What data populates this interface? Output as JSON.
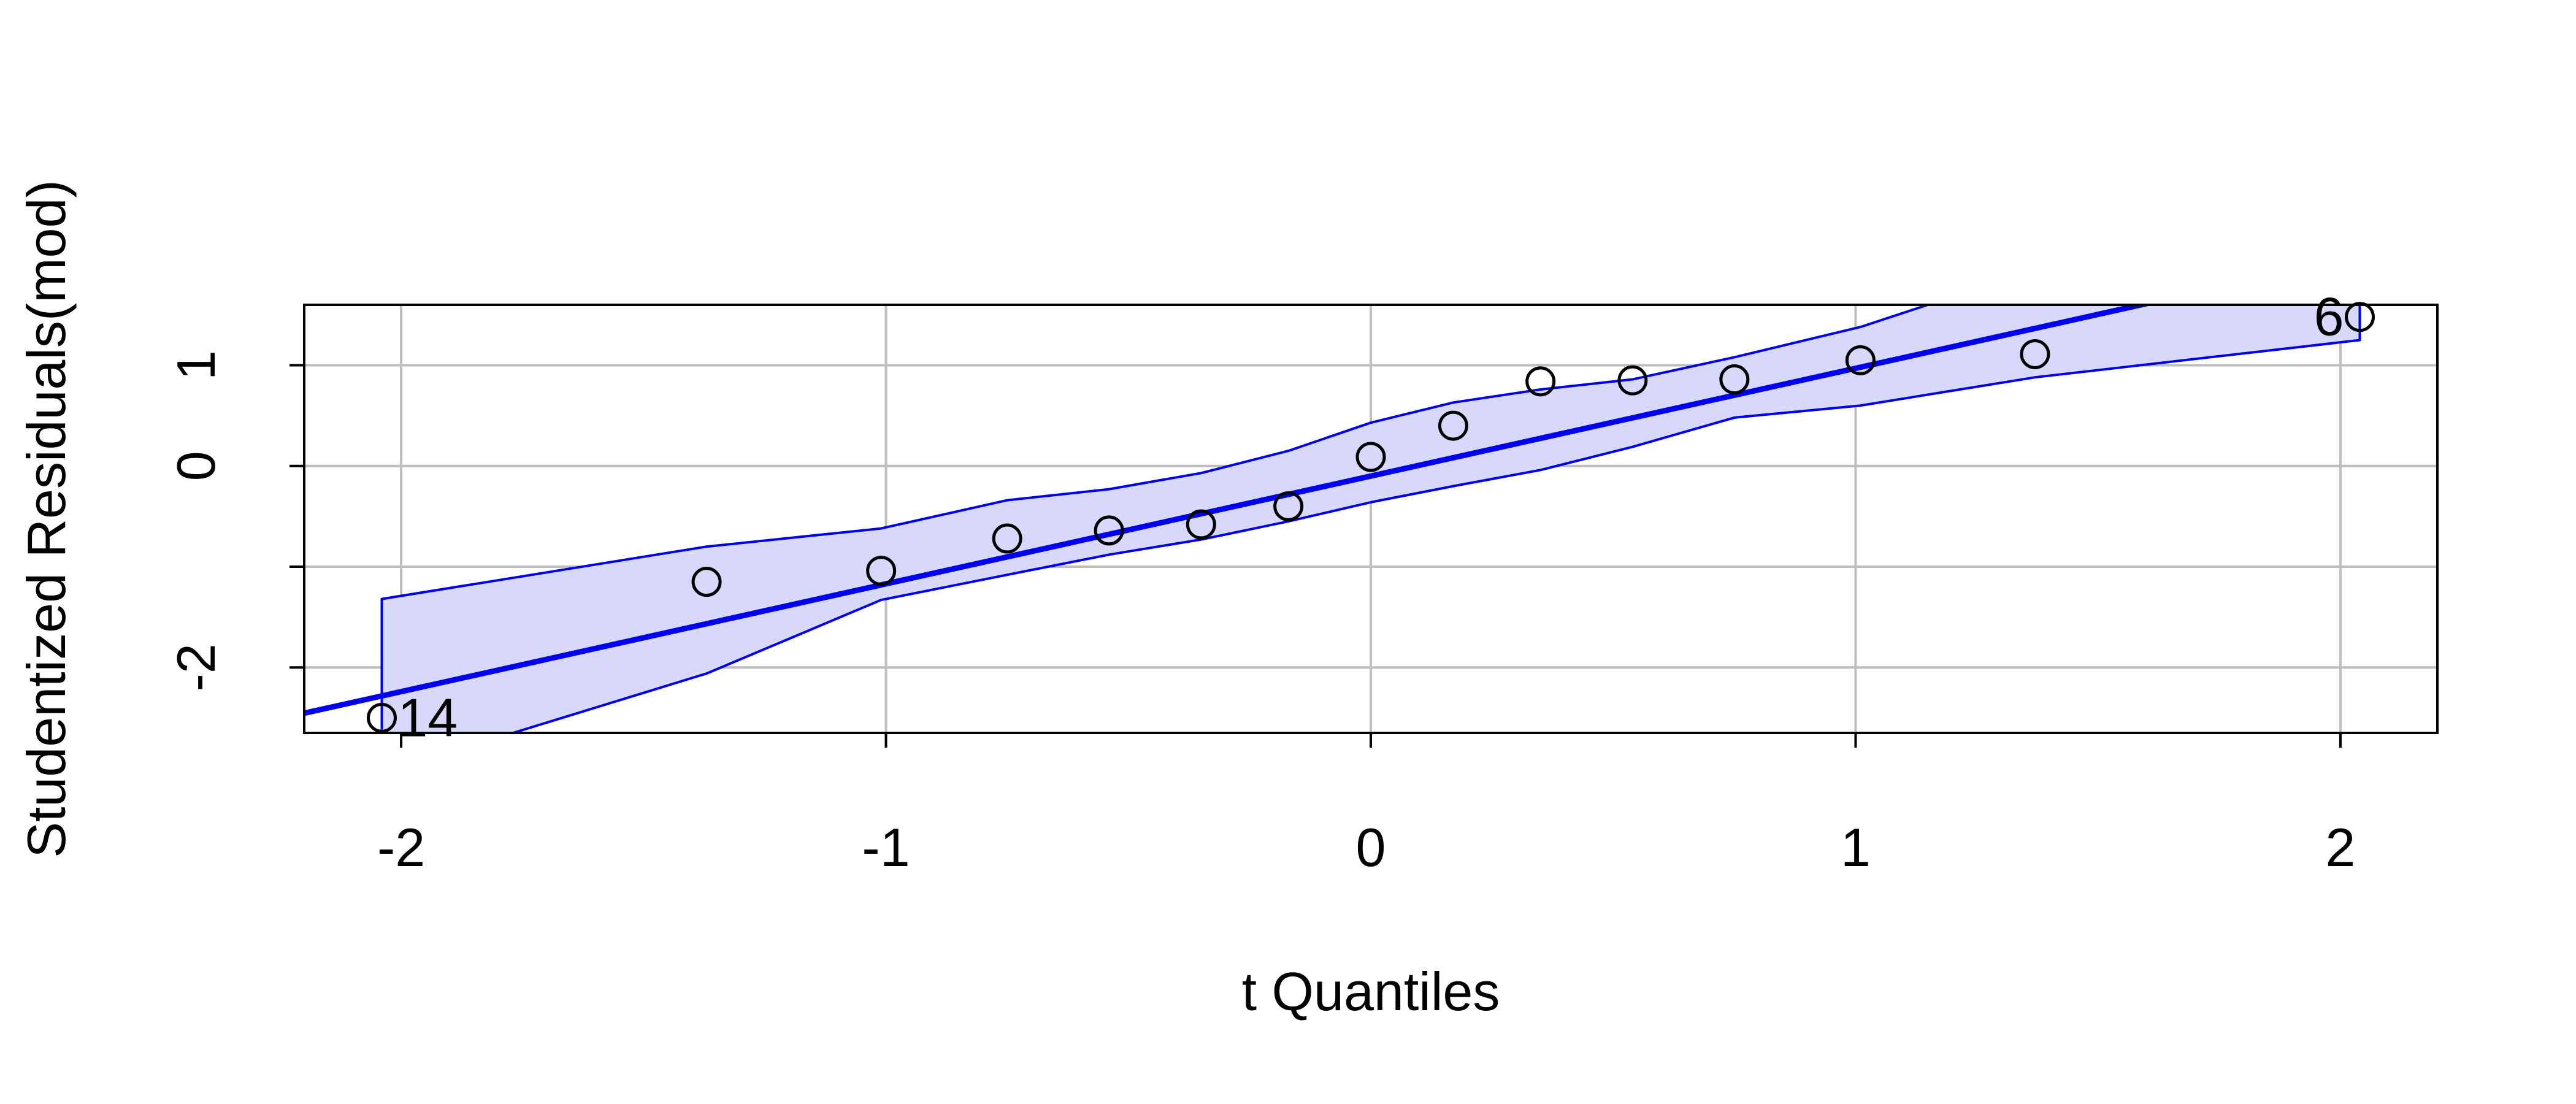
{
  "chart_data": {
    "type": "scatter",
    "title": "",
    "xlabel": "t Quantiles",
    "ylabel": "Studentized Residuals(mod)",
    "xlim": [
      -2.2,
      2.2
    ],
    "ylim": [
      -2.65,
      1.6
    ],
    "x_ticks": [
      -2,
      -1,
      0,
      1,
      2
    ],
    "x_tick_labels": [
      "-2",
      "-1",
      "0",
      "1",
      "2"
    ],
    "y_ticks": [
      -2,
      -1,
      0,
      1
    ],
    "y_tick_labels": [
      "-2",
      "",
      "0",
      "1"
    ],
    "grid": true,
    "series": [
      {
        "values": [
          [
            -2.04,
            -2.5
          ],
          [
            -1.37,
            -1.15
          ],
          [
            -1.01,
            -1.04
          ],
          [
            -0.75,
            -0.72
          ],
          [
            -0.54,
            -0.64
          ],
          [
            -0.35,
            -0.58
          ],
          [
            -0.17,
            -0.4
          ],
          [
            0.0,
            0.09
          ],
          [
            0.17,
            0.4
          ],
          [
            0.35,
            0.84
          ],
          [
            0.54,
            0.85
          ],
          [
            0.75,
            0.86
          ],
          [
            1.01,
            1.05
          ],
          [
            1.37,
            1.11
          ],
          [
            2.04,
            1.48
          ]
        ]
      }
    ],
    "reference_line": {
      "intercept": -0.1,
      "slope": 1.07
    },
    "envelope": {
      "upper": [
        [
          -2.04,
          -1.32
        ],
        [
          -1.37,
          -0.8
        ],
        [
          -1.01,
          -0.62
        ],
        [
          -0.75,
          -0.34
        ],
        [
          -0.54,
          -0.23
        ],
        [
          -0.35,
          -0.07
        ],
        [
          -0.17,
          0.15
        ],
        [
          0.0,
          0.43
        ],
        [
          0.17,
          0.63
        ],
        [
          0.35,
          0.76
        ],
        [
          0.54,
          0.86
        ],
        [
          0.75,
          1.08
        ],
        [
          1.01,
          1.38
        ],
        [
          1.37,
          1.95
        ],
        [
          2.04,
          1.65
        ]
      ],
      "lower": [
        [
          2.04,
          1.25
        ],
        [
          1.37,
          0.88
        ],
        [
          1.01,
          0.6
        ],
        [
          0.75,
          0.48
        ],
        [
          0.54,
          0.19
        ],
        [
          0.35,
          -0.04
        ],
        [
          0.17,
          -0.2
        ],
        [
          0.0,
          -0.36
        ],
        [
          -0.17,
          -0.55
        ],
        [
          -0.35,
          -0.73
        ],
        [
          -0.54,
          -0.88
        ],
        [
          -0.75,
          -1.08
        ],
        [
          -1.01,
          -1.33
        ],
        [
          -1.37,
          -2.06
        ],
        [
          -2.04,
          -3.05
        ]
      ]
    },
    "point_labels": [
      {
        "text": "14",
        "x": -2.04,
        "y": -2.5,
        "side": "right"
      },
      {
        "text": "6",
        "x": 2.04,
        "y": 1.48,
        "side": "left"
      }
    ],
    "colors": {
      "band_fill": "#d8d8fb",
      "band_line": "#0000ee",
      "reference_line": "#0000ee",
      "grid": "#bebebe",
      "points": "#000000"
    }
  }
}
